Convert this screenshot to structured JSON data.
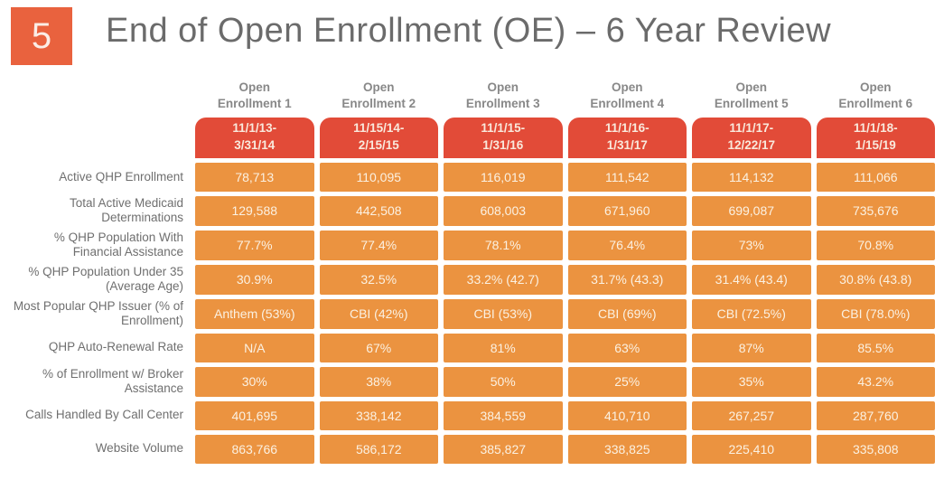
{
  "slide": {
    "number": "5",
    "title": "End of Open Enrollment (OE) – 6 Year Review"
  },
  "chart_data": {
    "type": "table",
    "title": "End of Open Enrollment (OE) – 6 Year Review",
    "columns": [
      {
        "line1": "Open",
        "line2": "Enrollment 1",
        "period1": "11/1/13-",
        "period2": "3/31/14"
      },
      {
        "line1": "Open",
        "line2": "Enrollment 2",
        "period1": "11/15/14-",
        "period2": "2/15/15"
      },
      {
        "line1": "Open",
        "line2": "Enrollment 3",
        "period1": "11/1/15-",
        "period2": "1/31/16"
      },
      {
        "line1": "Open",
        "line2": "Enrollment 4",
        "period1": "11/1/16-",
        "period2": "1/31/17"
      },
      {
        "line1": "Open",
        "line2": "Enrollment 5",
        "period1": "11/1/17-",
        "period2": "12/22/17"
      },
      {
        "line1": "Open",
        "line2": "Enrollment 6",
        "period1": "11/1/18-",
        "period2": "1/15/19"
      }
    ],
    "rows": [
      {
        "label": "Active QHP Enrollment",
        "values": [
          "78,713",
          "110,095",
          "116,019",
          "111,542",
          "114,132",
          "111,066"
        ]
      },
      {
        "label": "Total Active Medicaid Determinations",
        "values": [
          "129,588",
          "442,508",
          "608,003",
          "671,960",
          "699,087",
          "735,676"
        ]
      },
      {
        "label": "% QHP Population With Financial Assistance",
        "values": [
          "77.7%",
          "77.4%",
          "78.1%",
          "76.4%",
          "73%",
          "70.8%"
        ]
      },
      {
        "label": "% QHP Population Under 35 (Average Age)",
        "values": [
          "30.9%",
          "32.5%",
          "33.2% (42.7)",
          "31.7% (43.3)",
          "31.4% (43.4)",
          "30.8% (43.8)"
        ]
      },
      {
        "label": "Most Popular QHP Issuer (% of Enrollment)",
        "values": [
          "Anthem (53%)",
          "CBI (42%)",
          "CBI (53%)",
          "CBI (69%)",
          "CBI (72.5%)",
          "CBI (78.0%)"
        ]
      },
      {
        "label": "QHP Auto-Renewal Rate",
        "values": [
          "N/A",
          "67%",
          "81%",
          "63%",
          "87%",
          "85.5%"
        ]
      },
      {
        "label": "% of Enrollment w/ Broker Assistance",
        "values": [
          "30%",
          "38%",
          "50%",
          "25%",
          "35%",
          "43.2%"
        ]
      },
      {
        "label": "Calls Handled By Call Center",
        "values": [
          "401,695",
          "338,142",
          "384,559",
          "410,710",
          "267,257",
          "287,760"
        ]
      },
      {
        "label": "Website Volume",
        "values": [
          "863,766",
          "586,172",
          "385,827",
          "338,825",
          "225,410",
          "335,808"
        ]
      }
    ]
  },
  "colors": {
    "slide_number_bg": "#E9623E",
    "period_pill_bg": "#E24B38",
    "data_cell_bg": "#EB9340",
    "title_text": "#6B6B6B",
    "label_text": "#6F6F6F",
    "cell_text": "#FBF1E2"
  }
}
